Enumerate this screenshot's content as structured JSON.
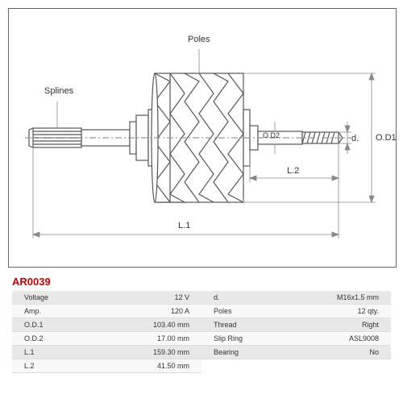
{
  "part_id": "AR0039",
  "labels": {
    "splines": "Splines",
    "poles": "Poles",
    "od1": "O.D1",
    "od2": "O.D2",
    "d": "d.",
    "l1": "L.1",
    "l2": "L.2"
  },
  "specs": {
    "left": [
      {
        "label": "Voltage",
        "value": "12 V"
      },
      {
        "label": "Amp.",
        "value": "120 A"
      },
      {
        "label": "O.D.1",
        "value": "103.40 mm"
      },
      {
        "label": "O.D.2",
        "value": "17.00 mm"
      },
      {
        "label": "L.1",
        "value": "159.30 mm"
      },
      {
        "label": "L.2",
        "value": "41.50 mm"
      }
    ],
    "right": [
      {
        "label": "d.",
        "value": "M16x1.5 mm"
      },
      {
        "label": "Poles",
        "value": "12 qty."
      },
      {
        "label": "Thread",
        "value": "Right"
      },
      {
        "label": "Slip Ring",
        "value": "ASL9008"
      },
      {
        "label": "Bearing",
        "value": "No"
      }
    ]
  },
  "diagram": {
    "stroke_color": "#555",
    "stroke_width": 1.2,
    "dim_stroke": "#888"
  }
}
